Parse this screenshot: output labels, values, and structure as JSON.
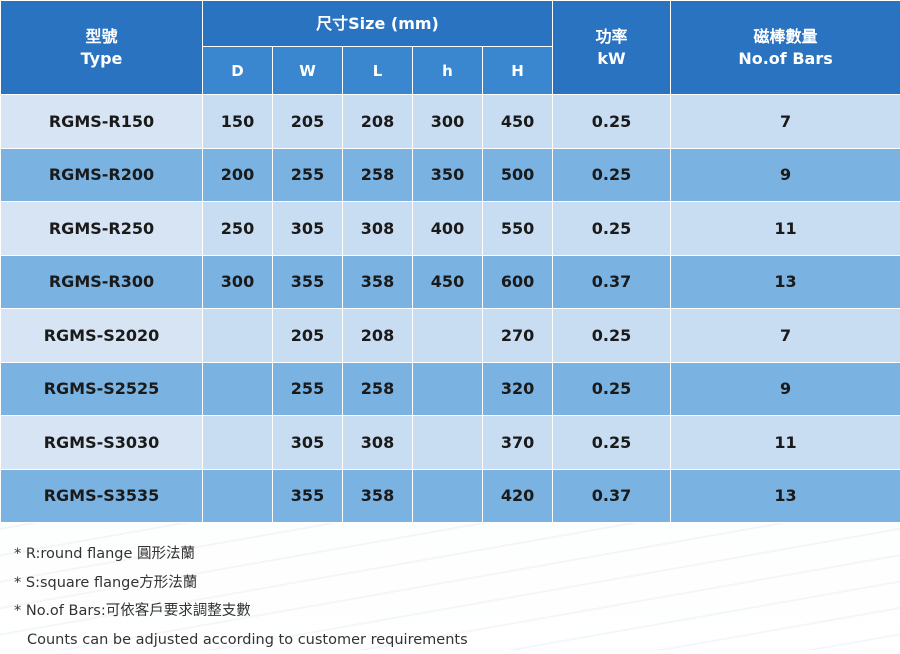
{
  "header": {
    "type_zh": "型號",
    "type_en": "Type",
    "size_group": "尺寸Size (mm)",
    "size_cols": [
      "D",
      "W",
      "L",
      "h",
      "H"
    ],
    "power_zh": "功率",
    "power_en": "kW",
    "bars_zh": "磁棒數量",
    "bars_en": "No.of Bars"
  },
  "rows": [
    {
      "type": "RGMS-R150",
      "D": "150",
      "W": "205",
      "L": "208",
      "h": "300",
      "H": "450",
      "kw": "0.25",
      "bars": "7"
    },
    {
      "type": "RGMS-R200",
      "D": "200",
      "W": "255",
      "L": "258",
      "h": "350",
      "H": "500",
      "kw": "0.25",
      "bars": "9"
    },
    {
      "type": "RGMS-R250",
      "D": "250",
      "W": "305",
      "L": "308",
      "h": "400",
      "H": "550",
      "kw": "0.25",
      "bars": "11"
    },
    {
      "type": "RGMS-R300",
      "D": "300",
      "W": "355",
      "L": "358",
      "h": "450",
      "H": "600",
      "kw": "0.37",
      "bars": "13"
    },
    {
      "type": "RGMS-S2020",
      "D": "",
      "W": "205",
      "L": "208",
      "h": "",
      "H": "270",
      "kw": "0.25",
      "bars": "7"
    },
    {
      "type": "RGMS-S2525",
      "D": "",
      "W": "255",
      "L": "258",
      "h": "",
      "H": "320",
      "kw": "0.25",
      "bars": "9"
    },
    {
      "type": "RGMS-S3030",
      "D": "",
      "W": "305",
      "L": "308",
      "h": "",
      "H": "370",
      "kw": "0.25",
      "bars": "11"
    },
    {
      "type": "RGMS-S3535",
      "D": "",
      "W": "355",
      "L": "358",
      "h": "",
      "H": "420",
      "kw": "0.37",
      "bars": "13"
    }
  ],
  "notes": [
    "* R:round flange 圓形法蘭",
    "* S:square flange方形法蘭",
    "* No.of Bars:可依客戶要求調整支數",
    "Counts can be adjusted according to customer requirements"
  ]
}
